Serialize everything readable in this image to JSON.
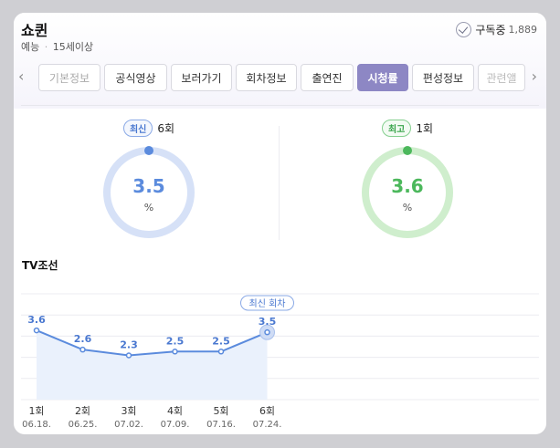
{
  "header": {
    "title": "쇼퀸",
    "genre": "예능",
    "separator": "·",
    "age_rating": "15세이상",
    "subscribe_label": "구독중",
    "subscriber_count": "1,889"
  },
  "tabs": {
    "prev_arrow": "‹",
    "next_arrow": "›",
    "items": [
      {
        "label": "기본정보"
      },
      {
        "label": "공식영상"
      },
      {
        "label": "보러가기"
      },
      {
        "label": "회차정보"
      },
      {
        "label": "출연진"
      },
      {
        "label": "시청률"
      },
      {
        "label": "편성정보"
      },
      {
        "label": "관련앨"
      }
    ],
    "active_index": 5
  },
  "ratings": {
    "latest": {
      "badge": "최신",
      "episode": "6회",
      "value": "3.5",
      "unit": "%",
      "color": "#5b8bdd",
      "track_color": "#d6e1f7"
    },
    "best": {
      "badge": "최고",
      "episode": "1회",
      "value": "3.6",
      "unit": "%",
      "color": "#4cb85c",
      "track_color": "#cfeecd"
    }
  },
  "chart_data": {
    "type": "area",
    "title": "TV조선",
    "categories": [
      "1회",
      "2회",
      "3회",
      "4회",
      "5회",
      "6회"
    ],
    "dates": [
      "06.18.",
      "06.25.",
      "07.02.",
      "07.09.",
      "07.16.",
      "07.24."
    ],
    "series": [
      {
        "values": [
          3.6,
          2.6,
          2.3,
          2.5,
          2.5,
          3.5
        ],
        "labels": [
          "3.6",
          "2.6",
          "2.3",
          "2.5",
          "2.5",
          "3.5"
        ]
      }
    ],
    "callout": "최신 회차",
    "total_slots": 10,
    "ylim": [
      0,
      5.5
    ],
    "grid": true,
    "colors": {
      "line": "#5b8bdd",
      "fill": "#eaf1fc",
      "label": "#4a78d0",
      "grid": "#ececf0"
    }
  }
}
